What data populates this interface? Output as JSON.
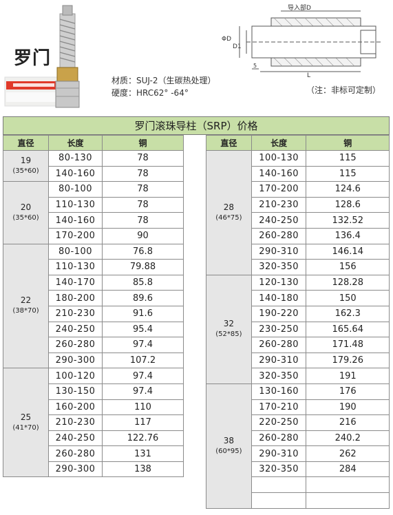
{
  "brand": "罗门",
  "material": "材质：SUJ-2（生碳热处理）",
  "hardness": "硬度：HRC62° -64°",
  "note": "（注：非标可定制）",
  "drawing": {
    "label_top": "导入部D",
    "label_d": "ΦD",
    "label_d1": "D1",
    "label_l": "L",
    "label_5": "5"
  },
  "table": {
    "title": "罗门滚珠导柱（SRP）价格",
    "headers": [
      "直径",
      "长度",
      "铜"
    ],
    "left_groups": [
      {
        "dia": "19",
        "sub": "(35*60)",
        "rows": [
          [
            "80-130",
            "78"
          ],
          [
            "140-160",
            "78"
          ]
        ]
      },
      {
        "dia": "20",
        "sub": "(35*60)",
        "rows": [
          [
            "80-100",
            "78"
          ],
          [
            "110-130",
            "78"
          ],
          [
            "140-160",
            "78"
          ],
          [
            "170-200",
            "90"
          ]
        ]
      },
      {
        "dia": "22",
        "sub": "(38*70)",
        "rows": [
          [
            "80-100",
            "76.8"
          ],
          [
            "110-130",
            "79.88"
          ],
          [
            "140-170",
            "85.8"
          ],
          [
            "180-200",
            "89.6"
          ],
          [
            "210-230",
            "91.6"
          ],
          [
            "240-250",
            "95.4"
          ],
          [
            "260-280",
            "97.4"
          ],
          [
            "290-300",
            "107.2"
          ]
        ]
      },
      {
        "dia": "25",
        "sub": "(41*70)",
        "rows": [
          [
            "100-120",
            "97.4"
          ],
          [
            "130-150",
            "97.4"
          ],
          [
            "160-200",
            "110"
          ],
          [
            "210-230",
            "117"
          ],
          [
            "240-250",
            "122.76"
          ],
          [
            "260-280",
            "131"
          ],
          [
            "290-300",
            "138"
          ]
        ]
      }
    ],
    "right_groups": [
      {
        "dia": "28",
        "sub": "(46*75)",
        "rows": [
          [
            "100-130",
            "115"
          ],
          [
            "140-160",
            "115"
          ],
          [
            "170-200",
            "124.6"
          ],
          [
            "210-230",
            "128.6"
          ],
          [
            "240-250",
            "132.52"
          ],
          [
            "260-280",
            "136.4"
          ],
          [
            "290-310",
            "146.14"
          ],
          [
            "320-350",
            "156"
          ]
        ]
      },
      {
        "dia": "32",
        "sub": "(52*85)",
        "rows": [
          [
            "120-130",
            "128.28"
          ],
          [
            "140-180",
            "150"
          ],
          [
            "190-220",
            "162.3"
          ],
          [
            "230-250",
            "165.64"
          ],
          [
            "260-280",
            "171.48"
          ],
          [
            "290-310",
            "179.26"
          ],
          [
            "320-350",
            "191"
          ]
        ]
      },
      {
        "dia": "38",
        "sub": "(60*95)",
        "rows": [
          [
            "130-160",
            "176"
          ],
          [
            "170-210",
            "190"
          ],
          [
            "220-250",
            "216"
          ],
          [
            "260-280",
            "240.2"
          ],
          [
            "290-310",
            "262"
          ],
          [
            "320-350",
            "284"
          ],
          [
            "",
            ""
          ],
          [
            "",
            ""
          ]
        ]
      }
    ]
  }
}
